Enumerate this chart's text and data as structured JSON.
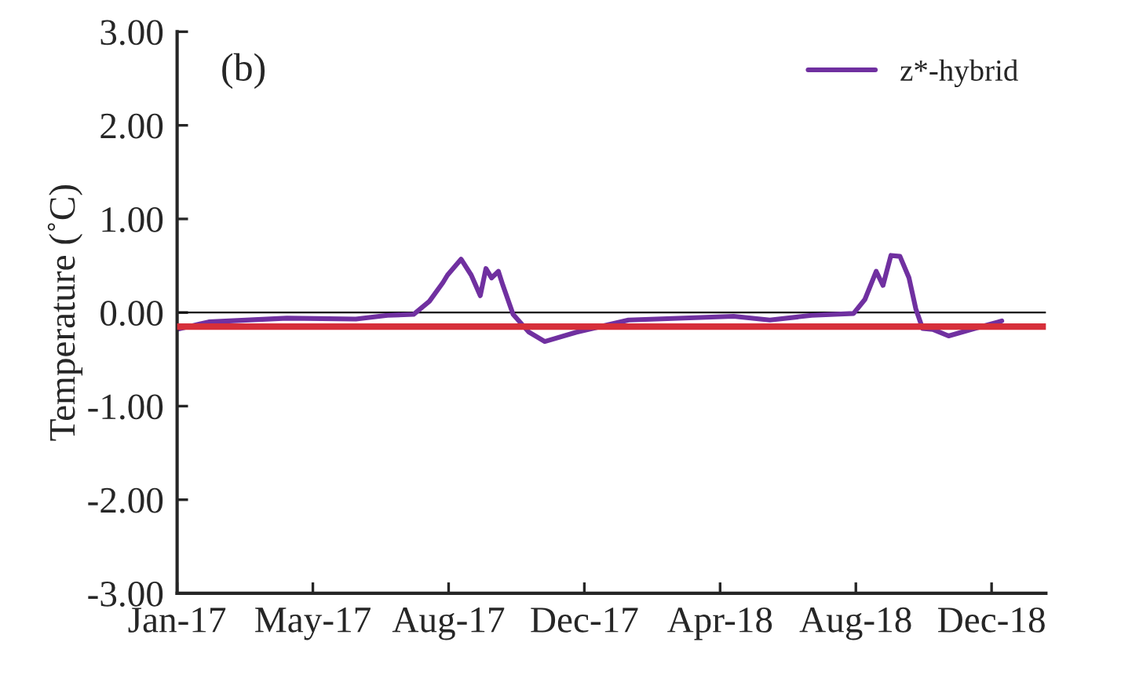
{
  "chart_data": {
    "type": "line",
    "ylabel": "Temperature (˚C)",
    "annotations": [
      "(b)"
    ],
    "x": [
      "2017-01-01",
      "2017-01-29",
      "2017-04-08",
      "2017-06-08",
      "2017-07-06",
      "2017-07-29",
      "2017-08-12",
      "2017-08-24",
      "2017-08-28",
      "2017-09-09",
      "2017-09-18",
      "2017-09-26",
      "2017-10-01",
      "2017-10-06",
      "2017-10-12",
      "2017-10-16",
      "2017-10-25",
      "2017-11-08",
      "2017-11-22",
      "2017-12-20",
      "2018-02-04",
      "2018-05-08",
      "2018-06-09",
      "2018-07-16",
      "2018-08-22",
      "2018-09-01",
      "2018-09-11",
      "2018-09-17",
      "2018-09-24",
      "2018-10-02",
      "2018-10-10",
      "2018-10-16",
      "2018-10-22",
      "2018-10-31",
      "2018-11-14",
      "2018-12-07",
      "2018-12-31"
    ],
    "series": [
      {
        "name": "z*-hybrid",
        "color": "#7030a0",
        "values": [
          -0.18,
          -0.1,
          -0.06,
          -0.07,
          -0.03,
          -0.02,
          0.12,
          0.32,
          0.4,
          0.57,
          0.4,
          0.18,
          0.47,
          0.37,
          0.44,
          0.29,
          -0.02,
          -0.21,
          -0.31,
          -0.21,
          -0.08,
          -0.04,
          -0.08,
          -0.03,
          -0.01,
          0.14,
          0.44,
          0.29,
          0.61,
          0.6,
          0.37,
          0.04,
          -0.17,
          -0.18,
          -0.25,
          -0.17,
          -0.09
        ]
      }
    ],
    "xlim": [
      "2017-01-01",
      "2019-02-08"
    ],
    "xticks": [
      {
        "value": "2017-01-01",
        "label": "Jan-17"
      },
      {
        "value": "2017-05-01",
        "label": "May-17"
      },
      {
        "value": "2017-08-29",
        "label": "Aug-17"
      },
      {
        "value": "2017-12-27",
        "label": "Dec-17"
      },
      {
        "value": "2018-04-26",
        "label": "Apr-18"
      },
      {
        "value": "2018-08-24",
        "label": "Aug-18"
      },
      {
        "value": "2018-12-22",
        "label": "Dec-18"
      }
    ],
    "ylim": [
      -3,
      3
    ],
    "yticks": [
      {
        "value": 3,
        "label": "3.00"
      },
      {
        "value": 2,
        "label": "2.00"
      },
      {
        "value": 1,
        "label": "1.00"
      },
      {
        "value": 0,
        "label": "0.00"
      },
      {
        "value": -1,
        "label": "-1.00"
      },
      {
        "value": -2,
        "label": "-2.00"
      },
      {
        "value": -3,
        "label": "-3.00"
      }
    ],
    "ref_lines": [
      {
        "axis": "y",
        "value": 0,
        "color": "#000000"
      },
      {
        "axis": "y",
        "value": -0.15,
        "color": "#d62f3a"
      }
    ],
    "grid": false,
    "legend": "top right",
    "marker": "none",
    "line_style": "solid"
  }
}
